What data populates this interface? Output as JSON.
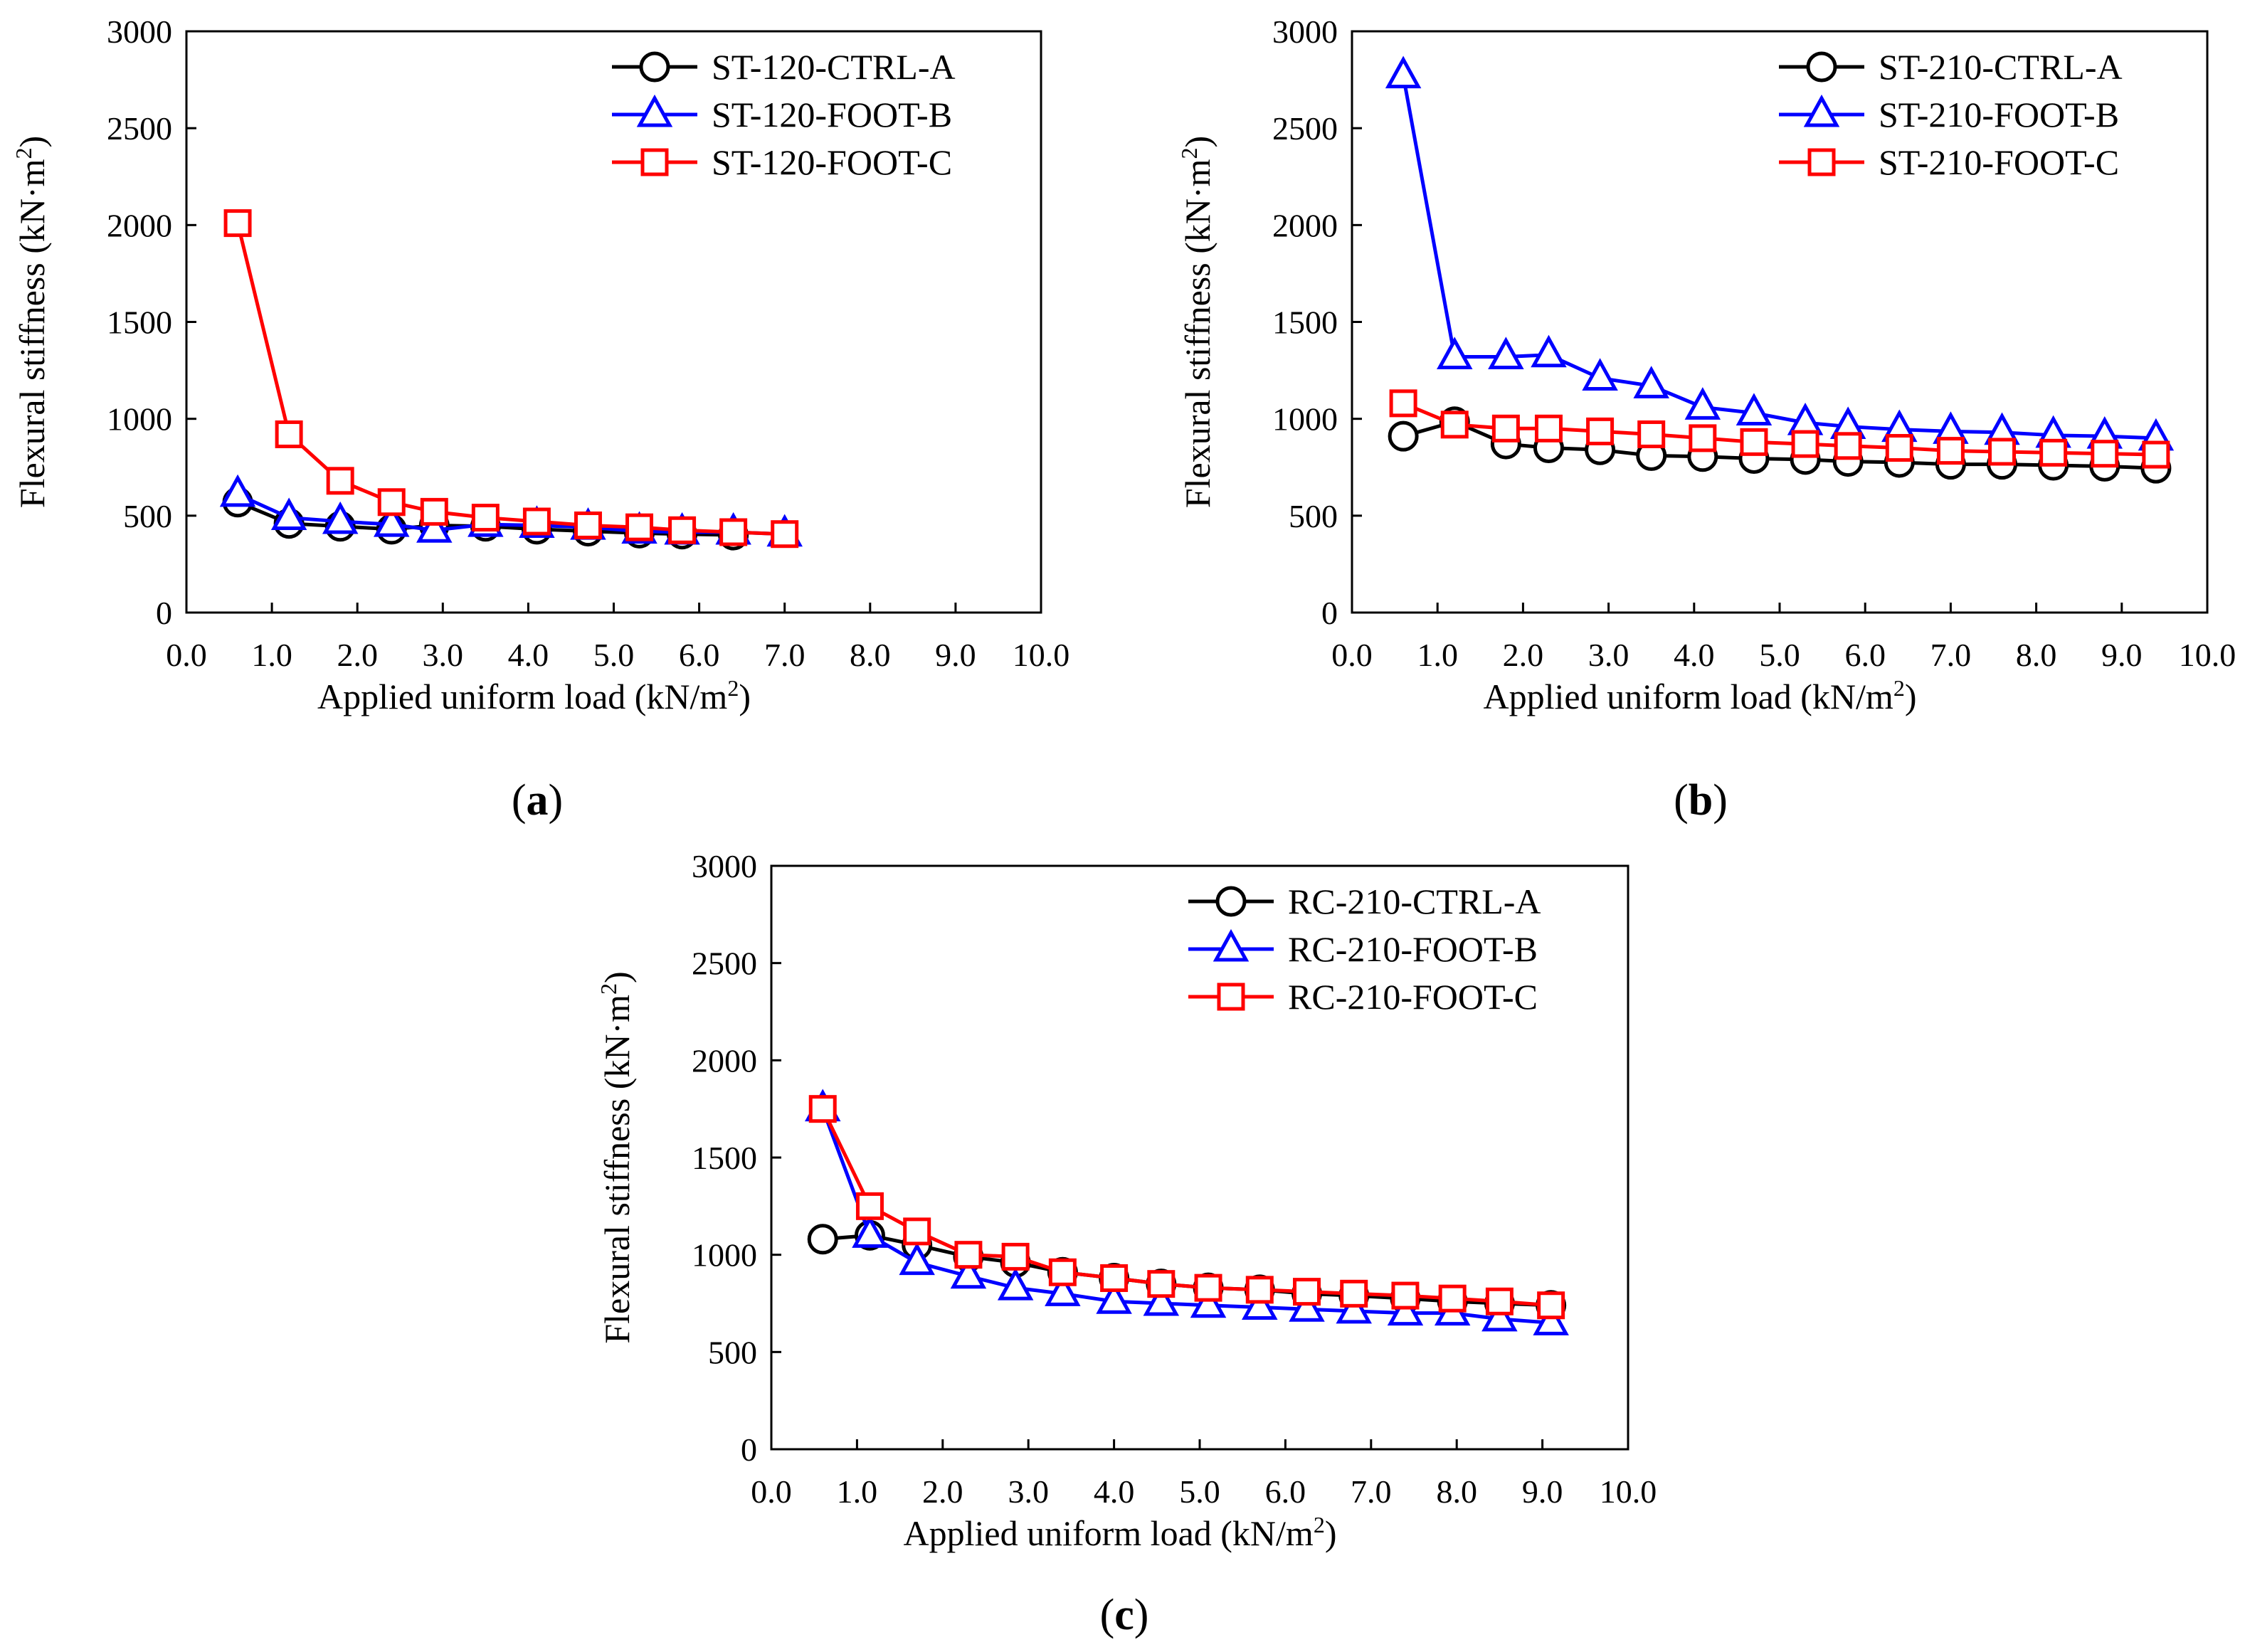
{
  "chart_data": [
    {
      "type": "line",
      "panel_label": "a",
      "xlabel": "Applied uniform load (kN/m",
      "xlabel_sup": "2",
      "xlabel_end": ")",
      "ylabel": "Flexural stiffness (kN·m",
      "ylabel_sup": "2",
      "ylabel_end": ")",
      "xlim": [
        0,
        10
      ],
      "ylim": [
        0,
        3000
      ],
      "xticks": [
        "0.0",
        "1.0",
        "2.0",
        "3.0",
        "4.0",
        "5.0",
        "6.0",
        "7.0",
        "8.0",
        "9.0",
        "10.0"
      ],
      "yticks": [
        "0",
        "500",
        "1000",
        "1500",
        "2000",
        "2500",
        "3000"
      ],
      "legend_position": "top-right",
      "grid": false,
      "series": [
        {
          "name": "ST-120-CTRL-A",
          "color": "#000000",
          "marker": "circle",
          "x": [
            0.6,
            1.2,
            1.8,
            2.4,
            2.9,
            3.5,
            4.1,
            4.7,
            5.3,
            5.8,
            6.4
          ],
          "y": [
            570,
            460,
            445,
            430,
            450,
            445,
            430,
            420,
            410,
            405,
            400
          ]
        },
        {
          "name": "ST-120-FOOT-B",
          "color": "#0000ff",
          "marker": "triangle",
          "x": [
            0.6,
            1.2,
            1.8,
            2.4,
            2.9,
            3.5,
            4.1,
            4.7,
            5.3,
            5.8,
            6.4,
            7.0
          ],
          "y": [
            610,
            490,
            470,
            455,
            425,
            455,
            450,
            440,
            420,
            415,
            415,
            405
          ]
        },
        {
          "name": "ST-120-FOOT-C",
          "color": "#ff0000",
          "marker": "square",
          "x": [
            0.6,
            1.2,
            1.8,
            2.4,
            2.9,
            3.5,
            4.1,
            4.7,
            5.3,
            5.8,
            6.4,
            7.0
          ],
          "y": [
            2010,
            920,
            680,
            570,
            520,
            490,
            470,
            450,
            440,
            425,
            415,
            405
          ]
        }
      ]
    },
    {
      "type": "line",
      "panel_label": "b",
      "xlabel": "Applied uniform load (kN/m",
      "xlabel_sup": "2",
      "xlabel_end": ")",
      "ylabel": "Flexural stiffness (kN·m",
      "ylabel_sup": "2",
      "ylabel_end": ")",
      "xlim": [
        0,
        10
      ],
      "ylim": [
        0,
        3000
      ],
      "xticks": [
        "0.0",
        "1.0",
        "2.0",
        "3.0",
        "4.0",
        "5.0",
        "6.0",
        "7.0",
        "8.0",
        "9.0",
        "10.0"
      ],
      "yticks": [
        "0",
        "500",
        "1000",
        "1500",
        "2000",
        "2500",
        "3000"
      ],
      "legend_position": "top-right",
      "grid": false,
      "series": [
        {
          "name": "ST-210-CTRL-A",
          "color": "#000000",
          "marker": "circle",
          "x": [
            0.6,
            1.2,
            1.8,
            2.3,
            2.9,
            3.5,
            4.1,
            4.7,
            5.3,
            5.8,
            6.4,
            7.0,
            7.6,
            8.2,
            8.8,
            9.4
          ],
          "y": [
            910,
            985,
            870,
            850,
            840,
            810,
            805,
            795,
            790,
            780,
            775,
            765,
            765,
            760,
            755,
            745
          ]
        },
        {
          "name": "ST-210-FOOT-B",
          "color": "#0000ff",
          "marker": "triangle",
          "x": [
            0.6,
            1.2,
            1.8,
            2.3,
            2.9,
            3.5,
            4.1,
            4.7,
            5.3,
            5.8,
            6.4,
            7.0,
            7.6,
            8.2,
            8.8,
            9.4
          ],
          "y": [
            2770,
            1320,
            1320,
            1330,
            1210,
            1170,
            1060,
            1030,
            980,
            960,
            945,
            935,
            930,
            915,
            910,
            900
          ]
        },
        {
          "name": "ST-210-FOOT-C",
          "color": "#ff0000",
          "marker": "square",
          "x": [
            0.6,
            1.2,
            1.8,
            2.3,
            2.9,
            3.5,
            4.1,
            4.7,
            5.3,
            5.8,
            6.4,
            7.0,
            7.6,
            8.2,
            8.8,
            9.4
          ],
          "y": [
            1080,
            970,
            950,
            950,
            935,
            920,
            900,
            880,
            870,
            860,
            850,
            835,
            830,
            825,
            820,
            815
          ]
        }
      ]
    },
    {
      "type": "line",
      "panel_label": "c",
      "xlabel": "Applied uniform load (kN/m",
      "xlabel_sup": "2",
      "xlabel_end": ")",
      "ylabel": "Flexural stiffness (kN·m",
      "ylabel_sup": "2",
      "ylabel_end": ")",
      "xlim": [
        0,
        10
      ],
      "ylim": [
        0,
        3000
      ],
      "xticks": [
        "0.0",
        "1.0",
        "2.0",
        "3.0",
        "4.0",
        "5.0",
        "6.0",
        "7.0",
        "8.0",
        "9.0",
        "10.0"
      ],
      "yticks": [
        "0",
        "500",
        "1000",
        "1500",
        "2000",
        "2500",
        "3000"
      ],
      "legend_position": "top-right",
      "grid": false,
      "series": [
        {
          "name": "RC-210-CTRL-A",
          "color": "#000000",
          "marker": "circle",
          "x": [
            0.6,
            1.15,
            1.7,
            2.3,
            2.85,
            3.4,
            4.0,
            4.55,
            5.1,
            5.7,
            6.25,
            6.8,
            7.4,
            7.95,
            8.5,
            9.1
          ],
          "y": [
            1080,
            1100,
            1050,
            990,
            960,
            910,
            880,
            850,
            830,
            820,
            800,
            790,
            775,
            760,
            750,
            740
          ]
        },
        {
          "name": "RC-210-FOOT-B",
          "color": "#0000ff",
          "marker": "triangle",
          "x": [
            0.6,
            1.15,
            1.7,
            2.3,
            2.85,
            3.4,
            4.0,
            4.55,
            5.1,
            5.7,
            6.25,
            6.8,
            7.4,
            7.95,
            8.5,
            9.1
          ],
          "y": [
            1750,
            1100,
            960,
            890,
            830,
            800,
            760,
            750,
            740,
            730,
            720,
            710,
            700,
            700,
            670,
            650
          ]
        },
        {
          "name": "RC-210-FOOT-C",
          "color": "#ff0000",
          "marker": "square",
          "x": [
            0.6,
            1.15,
            1.7,
            2.3,
            2.85,
            3.4,
            4.0,
            4.55,
            5.1,
            5.7,
            6.25,
            6.8,
            7.4,
            7.95,
            8.5,
            9.1
          ],
          "y": [
            1750,
            1250,
            1120,
            1000,
            990,
            910,
            880,
            850,
            830,
            820,
            810,
            800,
            790,
            775,
            760,
            740
          ]
        }
      ]
    }
  ]
}
